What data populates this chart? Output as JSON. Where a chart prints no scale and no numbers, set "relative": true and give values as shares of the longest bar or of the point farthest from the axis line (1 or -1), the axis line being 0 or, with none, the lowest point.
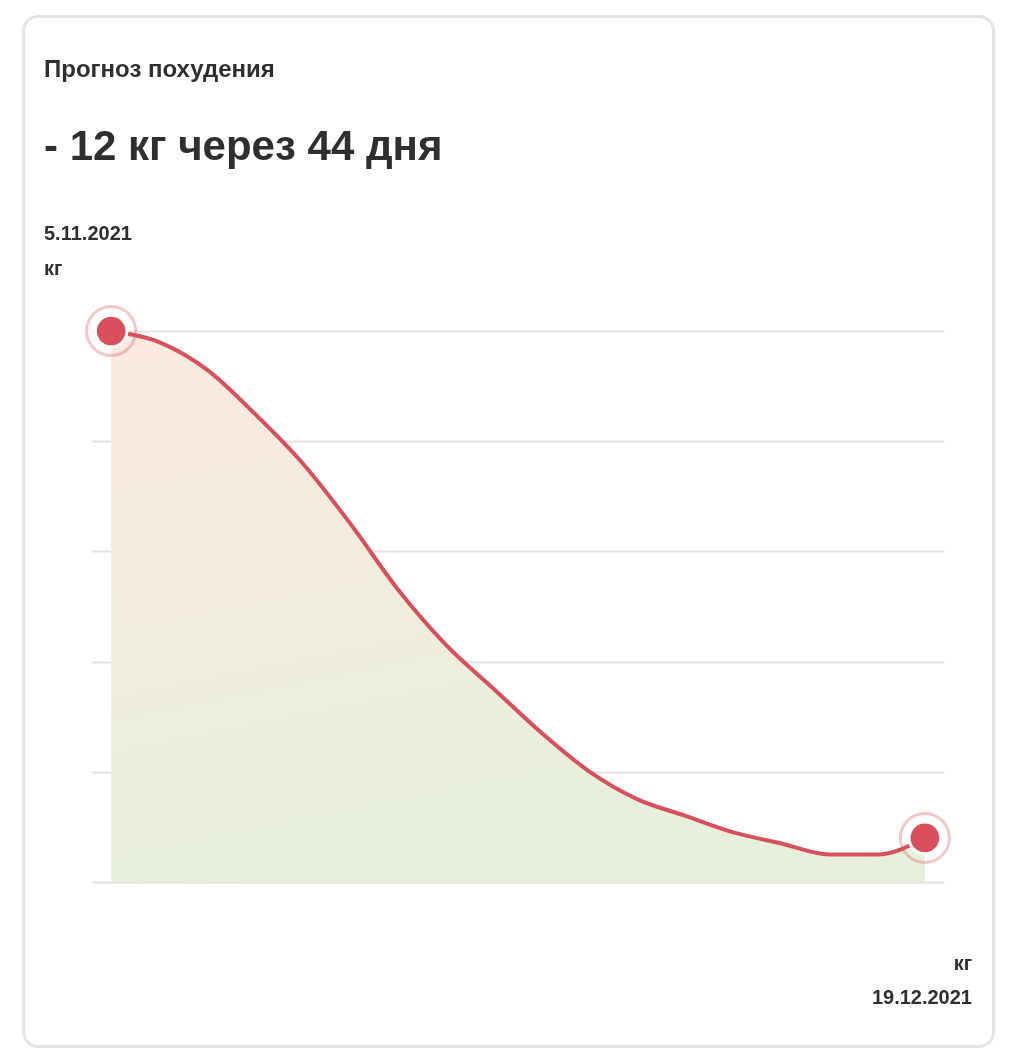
{
  "chart_data": {
    "type": "area",
    "title": "Прогноз похудения",
    "subtitle": "- 12 кг через 44 дня",
    "relative": true,
    "grid": "y",
    "annotations": [
      "5.11.2021",
      "кг",
      "кг",
      "19.12.2021"
    ],
    "categories": [
      null,
      null,
      null,
      null,
      null,
      null,
      null,
      null,
      null,
      null,
      null,
      null,
      null,
      null,
      null,
      null,
      null,
      null
    ],
    "series": [
      {
        "color": "#d9505c",
        "values": [
          1,
          0.98,
          0.93,
          0.85,
          0.76,
          0.65,
          0.53,
          0.43,
          0.35,
          0.27,
          0.2,
          0.15,
          0.12,
          0.09,
          0.07,
          0.05,
          0.05,
          0.08
        ]
      }
    ]
  }
}
